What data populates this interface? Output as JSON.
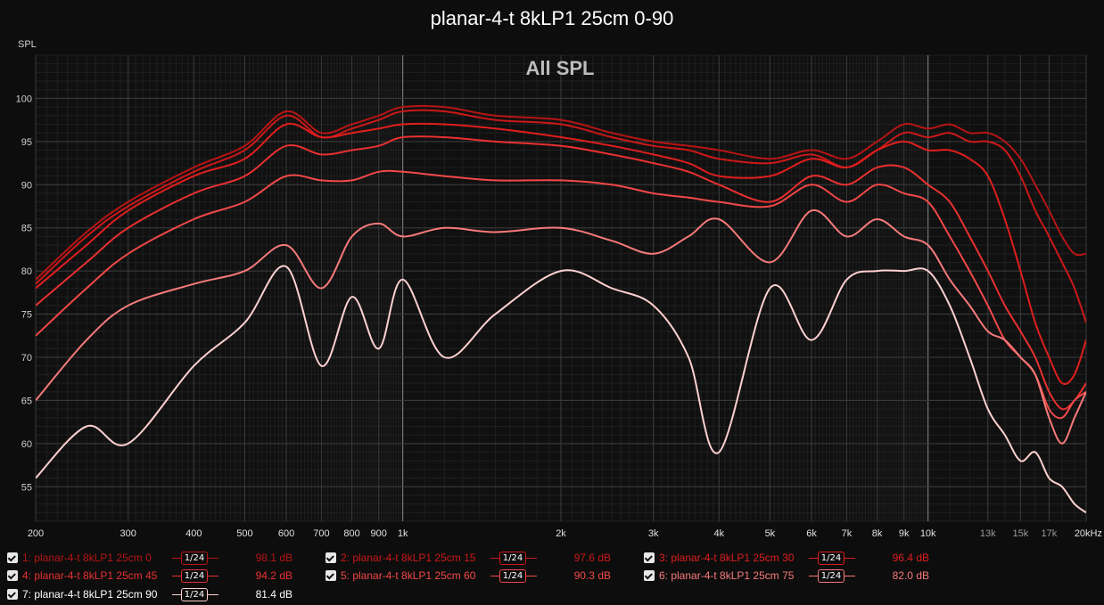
{
  "title": "planar-4-t 8kLP1 25cm 0-90",
  "chart_data": {
    "type": "line",
    "title": "planar-4-t 8kLP1 25cm 0-90",
    "watermark": "All SPL",
    "ylabel": "SPL",
    "xlabel": "",
    "x_scale": "log",
    "xlim": [
      200,
      20000
    ],
    "ylim": [
      51,
      105
    ],
    "y_ticks": [
      55,
      60,
      65,
      70,
      75,
      80,
      85,
      90,
      95,
      100
    ],
    "x_ticks": [
      {
        "v": 200,
        "label": "200"
      },
      {
        "v": 300,
        "label": "300"
      },
      {
        "v": 400,
        "label": "400"
      },
      {
        "v": 500,
        "label": "500"
      },
      {
        "v": 600,
        "label": "600"
      },
      {
        "v": 700,
        "label": "700"
      },
      {
        "v": 800,
        "label": "800"
      },
      {
        "v": 900,
        "label": "900"
      },
      {
        "v": 1000,
        "label": "1k"
      },
      {
        "v": 2000,
        "label": "2k"
      },
      {
        "v": 3000,
        "label": "3k"
      },
      {
        "v": 4000,
        "label": "4k"
      },
      {
        "v": 5000,
        "label": "5k"
      },
      {
        "v": 6000,
        "label": "6k"
      },
      {
        "v": 7000,
        "label": "7k"
      },
      {
        "v": 8000,
        "label": "8k"
      },
      {
        "v": 9000,
        "label": "9k"
      },
      {
        "v": 10000,
        "label": "10k"
      },
      {
        "v": 13000,
        "label": "13k"
      },
      {
        "v": 15000,
        "label": "15k"
      },
      {
        "v": 17000,
        "label": "17k"
      },
      {
        "v": 20000,
        "label": "20kHz"
      }
    ],
    "x": [
      200,
      250,
      300,
      400,
      500,
      600,
      700,
      800,
      900,
      1000,
      1200,
      1500,
      2000,
      2500,
      3000,
      3500,
      4000,
      5000,
      6000,
      7000,
      8000,
      9000,
      10000,
      11000,
      12000,
      13000,
      14000,
      15000,
      16000,
      17000,
      18000,
      19000,
      20000
    ],
    "series": [
      {
        "name": "1: planar-4-t 8kLP1 25cm 0",
        "color": "#b81414",
        "smoothing": "1/24",
        "value_label": "98.1 dB",
        "values": [
          79,
          84.5,
          88,
          92,
          94.5,
          98.5,
          96,
          97,
          98,
          99,
          99,
          98,
          97.5,
          96,
          95,
          94.5,
          94,
          93,
          94,
          93,
          95,
          97,
          96.5,
          97,
          96,
          96,
          95,
          93,
          90,
          87,
          84,
          82,
          82
        ]
      },
      {
        "name": "2: planar-4-t 8kLP1 25cm 15",
        "color": "#cc1818",
        "smoothing": "1/24",
        "value_label": "97.6 dB",
        "values": [
          78.5,
          84,
          87.5,
          91.5,
          94,
          98,
          95.5,
          96.5,
          97.5,
          98.5,
          98.5,
          97.5,
          97,
          95.5,
          94.5,
          94,
          93,
          92.5,
          93.5,
          92,
          94,
          96,
          95.5,
          96,
          95,
          95,
          94,
          91,
          87,
          84,
          81,
          78,
          74
        ]
      },
      {
        "name": "3: planar-4-t 8kLP1 25cm 30",
        "color": "#e01e1e",
        "smoothing": "1/24",
        "value_label": "96.4 dB",
        "values": [
          78,
          83,
          87,
          91,
          93,
          97,
          95.5,
          96,
          96.5,
          97,
          97,
          96.5,
          95.5,
          94.5,
          93.5,
          92.5,
          91,
          91,
          93,
          92,
          94,
          95,
          94,
          94,
          93,
          91,
          86,
          80,
          74,
          70,
          67,
          68,
          72
        ]
      },
      {
        "name": "4: planar-4-t 8kLP1 25cm 45",
        "color": "#ea3030",
        "smoothing": "1/24",
        "value_label": "94.2 dB",
        "values": [
          76,
          81,
          85,
          89,
          91,
          94.5,
          93.5,
          94,
          94.5,
          95.5,
          95.5,
          95,
          94.5,
          93.5,
          92.5,
          91.5,
          90,
          88,
          91,
          90,
          92,
          92,
          90,
          88,
          84,
          80,
          76,
          73,
          70,
          66,
          64,
          65,
          67
        ]
      },
      {
        "name": "5: planar-4-t 8kLP1 25cm 60",
        "color": "#f24848",
        "smoothing": "1/24",
        "value_label": "90.3 dB",
        "values": [
          72.5,
          78,
          82,
          86,
          88,
          91,
          90.5,
          90.5,
          91.5,
          91.5,
          91,
          90.5,
          90.5,
          90,
          89,
          88.5,
          88,
          87.5,
          90,
          88,
          90,
          89,
          88,
          84,
          80,
          76,
          72,
          70,
          68,
          64,
          63,
          65,
          66
        ]
      },
      {
        "name": "6: planar-4-t 8kLP1 25cm 75",
        "color": "#f77a7a",
        "smoothing": "1/24",
        "value_label": "82.0 dB",
        "values": [
          65,
          72,
          76,
          78.5,
          80,
          83,
          78,
          84,
          85.5,
          84,
          85,
          84.5,
          85,
          83.5,
          82,
          84,
          86,
          81,
          87,
          84,
          86,
          84,
          83,
          79,
          76,
          73,
          72,
          70,
          68,
          63,
          60,
          63,
          66
        ]
      },
      {
        "name": "7: planar-4-t 8kLP1 25cm 90",
        "color": "#ffd0d0",
        "smoothing": "1/24",
        "value_label": "81.4 dB",
        "values": [
          56,
          62,
          60,
          69,
          74,
          80.5,
          69,
          77,
          71,
          79,
          70,
          75,
          80,
          78,
          76,
          70,
          59,
          78,
          72,
          79,
          80,
          80,
          80,
          76,
          70,
          64,
          61,
          58,
          59,
          56,
          55,
          53,
          52
        ]
      }
    ],
    "grid": true,
    "legend": "bottom"
  }
}
